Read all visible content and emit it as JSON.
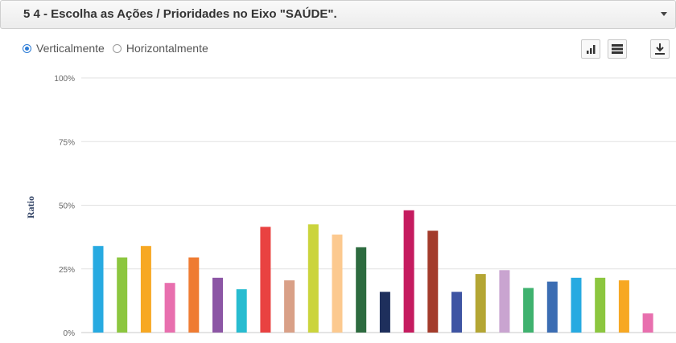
{
  "header": {
    "title": "5 4 - Escolha as Ações / Prioridades no Eixo \"SAÚDE\"."
  },
  "options": {
    "vertical_label": "Verticalmente",
    "horizontal_label": "Horizontalmente",
    "selected": "vertical"
  },
  "toolbar": {
    "icons": [
      "bar-chart-icon",
      "table-icon",
      "download-icon"
    ]
  },
  "chart_data": {
    "type": "bar",
    "ylabel": "Ratio",
    "ylim": [
      0,
      100
    ],
    "yticks": [
      "0%",
      "25%",
      "50%",
      "75%",
      "100%"
    ],
    "grid": true,
    "values": [
      34,
      29.5,
      34,
      19.5,
      29.5,
      21.5,
      17,
      41.5,
      20.5,
      42.5,
      38.5,
      33.5,
      16,
      48,
      40,
      16,
      23,
      24.5,
      17.5,
      20,
      21.5,
      21.5,
      20.5,
      7.5
    ],
    "colors": [
      "#27aae1",
      "#8cc63f",
      "#f7a823",
      "#e86fae",
      "#ef7b32",
      "#8c56a5",
      "#28bcd0",
      "#e94241",
      "#d9a087",
      "#cbd43c",
      "#fcc98f",
      "#2d6b3f",
      "#1e2f5c",
      "#c51b5f",
      "#a33b2b",
      "#3e54a3",
      "#b4a634",
      "#c9a4d0",
      "#3fb26f",
      "#3b6db3",
      "#27aae1",
      "#8cc63f",
      "#f7a823",
      "#e86fae"
    ]
  }
}
